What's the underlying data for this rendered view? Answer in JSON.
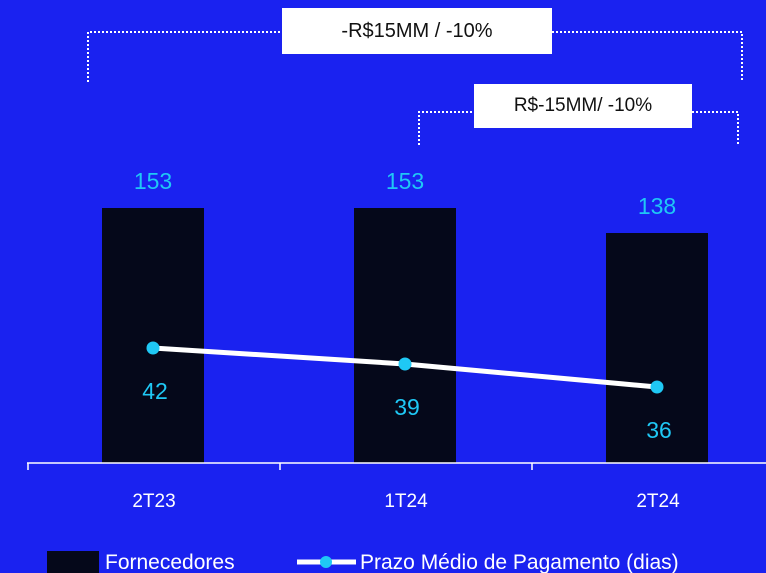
{
  "chart_data": {
    "type": "bar",
    "categories": [
      "2T23",
      "1T24",
      "2T24"
    ],
    "series": [
      {
        "name": "Fornecedores",
        "kind": "bar",
        "values": [
          153,
          153,
          138
        ],
        "color": "#05081a"
      },
      {
        "name": "Prazo Médio de Pagamento (dias)",
        "kind": "line",
        "values": [
          42,
          39,
          36
        ],
        "color": "#ffffff",
        "marker_color": "#1fc8f5"
      }
    ],
    "ylim": [
      0,
      180
    ],
    "grid": false,
    "legend": "bottom-left",
    "annotations": [
      {
        "text": "-R$15MM / -10%",
        "from": "2T23",
        "to": "2T24"
      },
      {
        "text": "R$-15MM/ -10%",
        "from": "1T24",
        "to": "2T24"
      }
    ]
  },
  "colors": {
    "background": "#1a22f0",
    "label_accent": "#1fc8f5",
    "bar": "#05081a",
    "line": "#ffffff"
  }
}
